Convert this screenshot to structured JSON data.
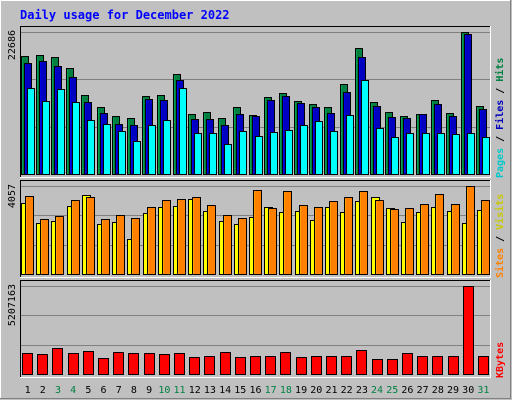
{
  "chart_data": {
    "type": "bar",
    "title": "Daily usage for December 2022",
    "categories": [
      "1",
      "2",
      "3",
      "4",
      "5",
      "6",
      "7",
      "8",
      "9",
      "10",
      "11",
      "12",
      "13",
      "14",
      "15",
      "16",
      "17",
      "18",
      "19",
      "20",
      "21",
      "22",
      "23",
      "24",
      "25",
      "26",
      "27",
      "28",
      "29",
      "30",
      "31"
    ],
    "weekend_days": [
      "3",
      "4",
      "10",
      "11",
      "17",
      "18",
      "24",
      "25",
      "31"
    ],
    "panels": [
      {
        "id": "pages-files-hits",
        "max_label": "22686",
        "ymax": 22686,
        "series": [
          {
            "name": "Hits",
            "color": "#008040",
            "values": [
              18920,
              18950,
              18760,
              16940,
              12600,
              10730,
              9200,
              8920,
              12450,
              12640,
              16000,
              9570,
              9850,
              8920,
              10730,
              9460,
              12300,
              12980,
              11660,
              11160,
              10760,
              14300,
              20150,
              11520,
              9870,
              9300,
              9640,
              11900,
              9820,
              22686,
              10850
            ]
          },
          {
            "name": "Files",
            "color": "#0000c0",
            "values": [
              17800,
              18000,
              17250,
              15500,
              11480,
              9720,
              8000,
              7820,
              11950,
              11780,
              14990,
              8770,
              8750,
              7800,
              9550,
              9200,
              11830,
              12450,
              11280,
              10700,
              9780,
              13100,
              18700,
              10790,
              9150,
              8880,
              9660,
              11120,
              9200,
              22300,
              10320
            ]
          },
          {
            "name": "Pages",
            "color": "#00ffff",
            "values": [
              13800,
              11700,
              13620,
              11520,
              8700,
              8000,
              6900,
              5300,
              7750,
              8680,
              13700,
              6500,
              6600,
              4840,
              6800,
              6050,
              6700,
              6960,
              7850,
              8450,
              6930,
              9400,
              14950,
              7300,
              5900,
              6500,
              6500,
              6530,
              6420,
              6540,
              5980
            ]
          }
        ]
      },
      {
        "id": "sites-visits",
        "max_label": "4057",
        "ymax": 4057,
        "series": [
          {
            "name": "Visits",
            "color": "#ffff00",
            "values": [
              3280,
              2330,
              2450,
              3150,
              3640,
              2320,
              2420,
              1620,
              2820,
              3090,
              3150,
              3450,
              2900,
              2430,
              2290,
              2610,
              3070,
              2880,
              2910,
              2470,
              3070,
              2870,
              3360,
              3560,
              3020,
              2420,
              2850,
              3080,
              2900,
              2330,
              2930
            ]
          },
          {
            "name": "Sites",
            "color": "#ff8000",
            "values": [
              3610,
              2530,
              2660,
              3410,
              3530,
              2540,
              2700,
              2560,
              3110,
              3430,
              3450,
              3530,
              3170,
              2720,
              2580,
              3850,
              3040,
              3830,
              3180,
              3100,
              3370,
              3530,
              3830,
              3390,
              3010,
              3020,
              3250,
              3680,
              3250,
              4057,
              3390
            ]
          }
        ]
      },
      {
        "id": "kbytes",
        "max_label": "5207163",
        "ymax": 5207163,
        "series": [
          {
            "name": "KBytes",
            "color": "#ff0000",
            "values": [
              1260000,
              1180000,
              1520000,
              1270000,
              1350000,
              970000,
              1300000,
              1260000,
              1260000,
              1160000,
              1250000,
              1030000,
              1090000,
              1300000,
              990000,
              1080000,
              1050000,
              1320000,
              1030000,
              1070000,
              1090000,
              1040000,
              1420000,
              880000,
              870000,
              1270000,
              1060000,
              1060000,
              1060000,
              5207163,
              1050000
            ]
          }
        ]
      }
    ],
    "legends": [
      [
        {
          "text": "Pages",
          "color": "#00c8c8"
        },
        {
          "text": " / ",
          "color": "#000000"
        },
        {
          "text": "Files",
          "color": "#0000c0"
        },
        {
          "text": " / ",
          "color": "#000000"
        },
        {
          "text": "Hits",
          "color": "#008040"
        }
      ],
      [
        {
          "text": "Sites",
          "color": "#ff8000"
        },
        {
          "text": " / ",
          "color": "#000000"
        },
        {
          "text": "Visits",
          "color": "#c8c800"
        }
      ],
      [
        {
          "text": "KBytes",
          "color": "#ff0000"
        }
      ]
    ],
    "colors": {
      "title": "#0000ff",
      "weekday_label": "#000000",
      "weekend_label": "#008040",
      "plot_background": "#c0c0c0",
      "grid": "#808080"
    }
  }
}
